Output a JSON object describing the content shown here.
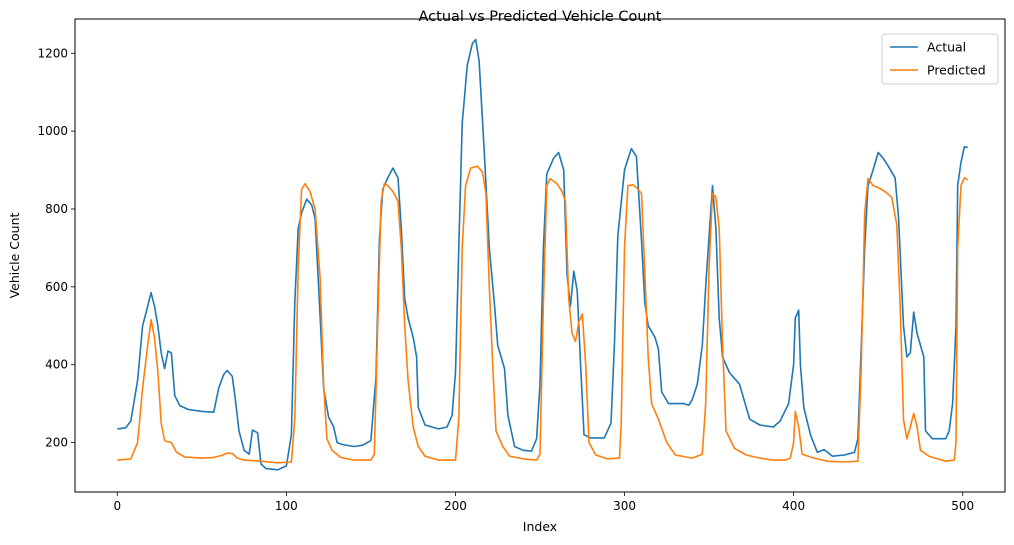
{
  "chart_data": {
    "type": "line",
    "title": "Actual vs Predicted Vehicle Count",
    "xlabel": "Index",
    "ylabel": "Vehicle Count",
    "xlim": [
      -25,
      525
    ],
    "ylim": [
      73,
      1288
    ],
    "xticks": [
      0,
      100,
      200,
      300,
      400,
      500
    ],
    "yticks": [
      200,
      400,
      600,
      800,
      1000,
      1200
    ],
    "grid": false,
    "legend_position": "top-right",
    "series": [
      {
        "name": "Actual",
        "color": "#1f77b4",
        "points": [
          [
            0,
            235
          ],
          [
            5,
            238
          ],
          [
            8,
            255
          ],
          [
            12,
            360
          ],
          [
            15,
            500
          ],
          [
            18,
            550
          ],
          [
            20,
            585
          ],
          [
            22,
            550
          ],
          [
            24,
            500
          ],
          [
            26,
            430
          ],
          [
            28,
            390
          ],
          [
            30,
            435
          ],
          [
            32,
            430
          ],
          [
            34,
            320
          ],
          [
            37,
            295
          ],
          [
            42,
            285
          ],
          [
            50,
            280
          ],
          [
            57,
            278
          ],
          [
            60,
            340
          ],
          [
            63,
            375
          ],
          [
            65,
            385
          ],
          [
            68,
            370
          ],
          [
            70,
            305
          ],
          [
            72,
            230
          ],
          [
            75,
            180
          ],
          [
            78,
            170
          ],
          [
            80,
            232
          ],
          [
            83,
            225
          ],
          [
            85,
            145
          ],
          [
            88,
            133
          ],
          [
            95,
            130
          ],
          [
            100,
            140
          ],
          [
            103,
            220
          ],
          [
            105,
            560
          ],
          [
            107,
            750
          ],
          [
            109,
            790
          ],
          [
            112,
            825
          ],
          [
            115,
            810
          ],
          [
            117,
            775
          ],
          [
            120,
            520
          ],
          [
            122,
            340
          ],
          [
            125,
            265
          ],
          [
            128,
            240
          ],
          [
            130,
            200
          ],
          [
            133,
            195
          ],
          [
            140,
            190
          ],
          [
            145,
            193
          ],
          [
            150,
            205
          ],
          [
            153,
            370
          ],
          [
            155,
            720
          ],
          [
            157,
            850
          ],
          [
            160,
            880
          ],
          [
            163,
            905
          ],
          [
            166,
            880
          ],
          [
            168,
            750
          ],
          [
            170,
            570
          ],
          [
            172,
            520
          ],
          [
            175,
            470
          ],
          [
            177,
            420
          ],
          [
            178,
            290
          ],
          [
            182,
            245
          ],
          [
            190,
            235
          ],
          [
            195,
            240
          ],
          [
            198,
            270
          ],
          [
            200,
            380
          ],
          [
            202,
            700
          ],
          [
            204,
            1020
          ],
          [
            207,
            1170
          ],
          [
            210,
            1225
          ],
          [
            212,
            1235
          ],
          [
            214,
            1180
          ],
          [
            217,
            950
          ],
          [
            220,
            700
          ],
          [
            223,
            560
          ],
          [
            225,
            450
          ],
          [
            227,
            420
          ],
          [
            229,
            390
          ],
          [
            231,
            270
          ],
          [
            235,
            190
          ],
          [
            240,
            180
          ],
          [
            245,
            178
          ],
          [
            248,
            210
          ],
          [
            250,
            350
          ],
          [
            252,
            700
          ],
          [
            254,
            890
          ],
          [
            258,
            930
          ],
          [
            261,
            945
          ],
          [
            264,
            900
          ],
          [
            266,
            630
          ],
          [
            268,
            550
          ],
          [
            270,
            640
          ],
          [
            272,
            590
          ],
          [
            274,
            400
          ],
          [
            276,
            220
          ],
          [
            280,
            212
          ],
          [
            288,
            212
          ],
          [
            292,
            250
          ],
          [
            294,
            450
          ],
          [
            296,
            730
          ],
          [
            300,
            900
          ],
          [
            304,
            955
          ],
          [
            307,
            935
          ],
          [
            310,
            720
          ],
          [
            312,
            560
          ],
          [
            314,
            500
          ],
          [
            318,
            470
          ],
          [
            320,
            440
          ],
          [
            322,
            330
          ],
          [
            326,
            300
          ],
          [
            335,
            300
          ],
          [
            338,
            296
          ],
          [
            340,
            310
          ],
          [
            343,
            350
          ],
          [
            346,
            450
          ],
          [
            348,
            600
          ],
          [
            350,
            730
          ],
          [
            352,
            860
          ],
          [
            354,
            750
          ],
          [
            356,
            520
          ],
          [
            358,
            420
          ],
          [
            362,
            380
          ],
          [
            368,
            350
          ],
          [
            374,
            260
          ],
          [
            380,
            245
          ],
          [
            388,
            240
          ],
          [
            392,
            255
          ],
          [
            397,
            300
          ],
          [
            400,
            400
          ],
          [
            401,
            520
          ],
          [
            403,
            540
          ],
          [
            404,
            400
          ],
          [
            406,
            290
          ],
          [
            410,
            220
          ],
          [
            414,
            175
          ],
          [
            418,
            182
          ],
          [
            423,
            165
          ],
          [
            430,
            168
          ],
          [
            436,
            175
          ],
          [
            438,
            210
          ],
          [
            440,
            450
          ],
          [
            442,
            700
          ],
          [
            444,
            860
          ],
          [
            447,
            900
          ],
          [
            450,
            945
          ],
          [
            453,
            930
          ],
          [
            456,
            910
          ],
          [
            460,
            880
          ],
          [
            462,
            780
          ],
          [
            465,
            500
          ],
          [
            467,
            420
          ],
          [
            469,
            430
          ],
          [
            471,
            535
          ],
          [
            473,
            480
          ],
          [
            477,
            420
          ],
          [
            478,
            230
          ],
          [
            482,
            210
          ],
          [
            490,
            210
          ],
          [
            492,
            230
          ],
          [
            494,
            300
          ],
          [
            496,
            500
          ],
          [
            497,
            860
          ],
          [
            499,
            920
          ],
          [
            501,
            960
          ],
          [
            503,
            958
          ]
        ]
      },
      {
        "name": "Predicted",
        "color": "#ff7f0e",
        "points": [
          [
            0,
            155
          ],
          [
            8,
            158
          ],
          [
            12,
            200
          ],
          [
            15,
            340
          ],
          [
            18,
            450
          ],
          [
            20,
            515
          ],
          [
            22,
            470
          ],
          [
            24,
            380
          ],
          [
            26,
            250
          ],
          [
            28,
            205
          ],
          [
            32,
            200
          ],
          [
            35,
            175
          ],
          [
            40,
            163
          ],
          [
            50,
            160
          ],
          [
            57,
            162
          ],
          [
            62,
            167
          ],
          [
            65,
            173
          ],
          [
            68,
            172
          ],
          [
            71,
            160
          ],
          [
            75,
            155
          ],
          [
            85,
            152
          ],
          [
            95,
            148
          ],
          [
            103,
            150
          ],
          [
            105,
            260
          ],
          [
            107,
            650
          ],
          [
            109,
            850
          ],
          [
            111,
            865
          ],
          [
            114,
            845
          ],
          [
            117,
            800
          ],
          [
            120,
            620
          ],
          [
            122,
            350
          ],
          [
            124,
            210
          ],
          [
            127,
            180
          ],
          [
            132,
            162
          ],
          [
            140,
            155
          ],
          [
            150,
            155
          ],
          [
            152,
            170
          ],
          [
            154,
            500
          ],
          [
            156,
            820
          ],
          [
            158,
            865
          ],
          [
            160,
            860
          ],
          [
            163,
            845
          ],
          [
            166,
            820
          ],
          [
            168,
            700
          ],
          [
            170,
            500
          ],
          [
            172,
            360
          ],
          [
            175,
            240
          ],
          [
            178,
            190
          ],
          [
            182,
            165
          ],
          [
            190,
            155
          ],
          [
            200,
            155
          ],
          [
            202,
            260
          ],
          [
            204,
            700
          ],
          [
            206,
            860
          ],
          [
            209,
            905
          ],
          [
            213,
            910
          ],
          [
            216,
            895
          ],
          [
            218,
            840
          ],
          [
            220,
            600
          ],
          [
            222,
            400
          ],
          [
            224,
            230
          ],
          [
            228,
            190
          ],
          [
            232,
            165
          ],
          [
            240,
            158
          ],
          [
            248,
            155
          ],
          [
            250,
            170
          ],
          [
            252,
            560
          ],
          [
            254,
            860
          ],
          [
            256,
            878
          ],
          [
            260,
            865
          ],
          [
            263,
            845
          ],
          [
            265,
            820
          ],
          [
            267,
            570
          ],
          [
            269,
            480
          ],
          [
            271,
            460
          ],
          [
            273,
            510
          ],
          [
            275,
            530
          ],
          [
            277,
            400
          ],
          [
            279,
            200
          ],
          [
            283,
            168
          ],
          [
            290,
            158
          ],
          [
            297,
            160
          ],
          [
            298,
            250
          ],
          [
            300,
            700
          ],
          [
            302,
            860
          ],
          [
            305,
            862
          ],
          [
            307,
            855
          ],
          [
            310,
            840
          ],
          [
            312,
            640
          ],
          [
            314,
            420
          ],
          [
            316,
            300
          ],
          [
            320,
            260
          ],
          [
            325,
            200
          ],
          [
            330,
            168
          ],
          [
            340,
            160
          ],
          [
            346,
            170
          ],
          [
            348,
            300
          ],
          [
            350,
            650
          ],
          [
            352,
            840
          ],
          [
            354,
            830
          ],
          [
            356,
            750
          ],
          [
            358,
            450
          ],
          [
            360,
            230
          ],
          [
            365,
            185
          ],
          [
            372,
            168
          ],
          [
            380,
            160
          ],
          [
            388,
            155
          ],
          [
            395,
            155
          ],
          [
            398,
            160
          ],
          [
            400,
            200
          ],
          [
            401,
            280
          ],
          [
            403,
            240
          ],
          [
            405,
            170
          ],
          [
            412,
            160
          ],
          [
            420,
            152
          ],
          [
            430,
            150
          ],
          [
            438,
            152
          ],
          [
            440,
            400
          ],
          [
            442,
            790
          ],
          [
            444,
            878
          ],
          [
            447,
            860
          ],
          [
            450,
            855
          ],
          [
            454,
            845
          ],
          [
            458,
            830
          ],
          [
            461,
            760
          ],
          [
            463,
            550
          ],
          [
            465,
            260
          ],
          [
            467,
            210
          ],
          [
            469,
            240
          ],
          [
            471,
            275
          ],
          [
            473,
            240
          ],
          [
            475,
            180
          ],
          [
            480,
            165
          ],
          [
            485,
            158
          ],
          [
            490,
            152
          ],
          [
            495,
            155
          ],
          [
            496,
            200
          ],
          [
            497,
            700
          ],
          [
            499,
            860
          ],
          [
            501,
            880
          ],
          [
            503,
            875
          ]
        ]
      }
    ]
  }
}
